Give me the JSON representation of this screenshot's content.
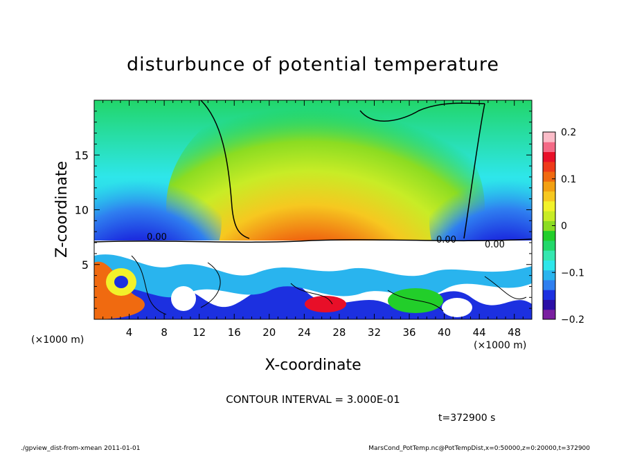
{
  "chart_data": {
    "type": "heatmap",
    "title": "disturbunce of potential temperature",
    "xlabel": "X-coordinate",
    "ylabel": "Z-coordinate",
    "x_unit_left": "(×1000 m)",
    "x_unit_right": "(×1000 m)",
    "xlim": [
      0,
      50
    ],
    "ylim": [
      0,
      20
    ],
    "x_ticks": [
      4,
      8,
      12,
      16,
      20,
      24,
      28,
      32,
      36,
      40,
      44,
      48
    ],
    "y_ticks": [
      5,
      10,
      15
    ],
    "colorbar": {
      "range": [
        -0.2,
        0.2
      ],
      "tick_values": [
        0.2,
        0.1,
        0,
        -0.1,
        -0.2
      ],
      "tick_labels": [
        "0.2",
        "0.1",
        "0",
        "−0.1",
        "−0.2"
      ],
      "colors": [
        "#7a1fa0",
        "#2b0fa6",
        "#1c30e0",
        "#2f7ff0",
        "#29b4ee",
        "#2ee6ea",
        "#35e7b0",
        "#22d86a",
        "#22ce2a",
        "#8bdc22",
        "#c8ec26",
        "#f2f22a",
        "#f6c820",
        "#f2a012",
        "#f06a10",
        "#ee3a1a",
        "#e80f28",
        "#f46a86",
        "#fbbcc8"
      ]
    },
    "contour_labels": [
      "0.00",
      "0.00",
      "0.00"
    ],
    "contour_interval_text": "CONTOUR INTERVAL = 3.000E-01",
    "time_text": "t=372900 s"
  },
  "footer": {
    "left": "./gpview_dist-from-xmean  2011-01-01",
    "right": "MarsCond_PotTemp.nc@PotTempDist,x=0:50000,z=0:20000,t=372900"
  }
}
